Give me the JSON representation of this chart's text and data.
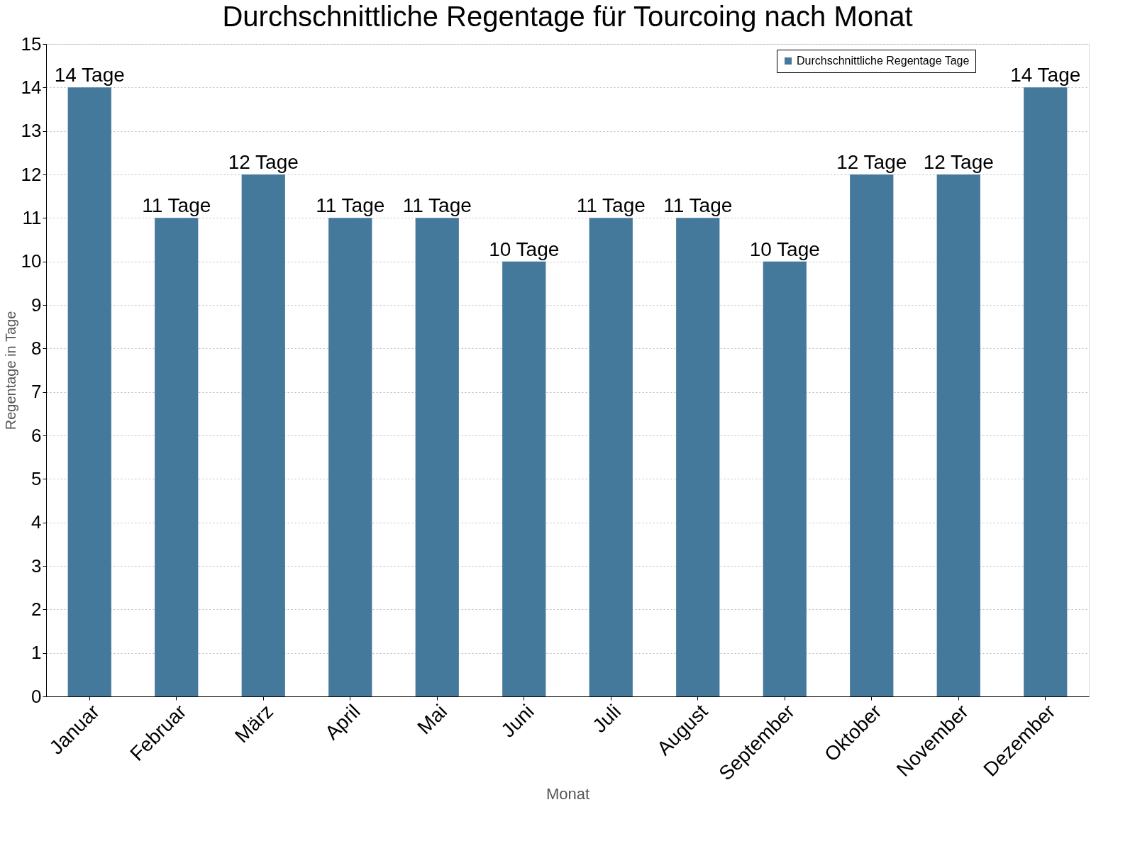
{
  "chart_data": {
    "type": "bar",
    "title": "Durchschnittliche Regentage für Tourcoing nach Monat",
    "xlabel": "Monat",
    "ylabel": "Regentage in Tage",
    "categories": [
      "Januar",
      "Februar",
      "März",
      "April",
      "Mai",
      "Juni",
      "Juli",
      "August",
      "September",
      "Oktober",
      "November",
      "Dezember"
    ],
    "series": [
      {
        "name": "Durchschnittliche Regentage Tage",
        "color": "#45799c",
        "values": [
          14,
          11,
          12,
          11,
          11,
          10,
          11,
          11,
          10,
          12,
          12,
          14
        ],
        "value_labels": [
          "14 Tage",
          "11 Tage",
          "12 Tage",
          "11 Tage",
          "11 Tage",
          "10 Tage",
          "11 Tage",
          "11 Tage",
          "10 Tage",
          "12 Tage",
          "12 Tage",
          "14 Tage"
        ]
      }
    ],
    "ylim": [
      0,
      15
    ],
    "yticks": [
      0,
      1,
      2,
      3,
      4,
      5,
      6,
      7,
      8,
      9,
      10,
      11,
      12,
      13,
      14,
      15
    ],
    "grid": "y",
    "legend": "top right"
  }
}
